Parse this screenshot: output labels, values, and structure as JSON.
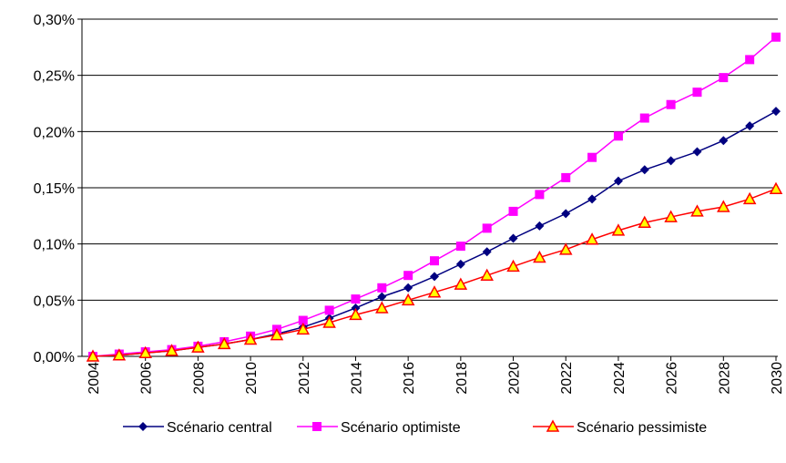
{
  "chart_data": {
    "type": "line",
    "x": [
      2004,
      2005,
      2006,
      2007,
      2008,
      2009,
      2010,
      2011,
      2012,
      2013,
      2014,
      2015,
      2016,
      2017,
      2018,
      2019,
      2020,
      2021,
      2022,
      2023,
      2024,
      2025,
      2026,
      2027,
      2028,
      2029,
      2030
    ],
    "xlim": [
      2004,
      2030
    ],
    "xticks": [
      2004,
      2006,
      2008,
      2010,
      2012,
      2014,
      2016,
      2018,
      2020,
      2022,
      2024,
      2026,
      2028,
      2030
    ],
    "ylim": [
      0,
      0.3
    ],
    "yticks": [
      {
        "value": 0,
        "label": "0,00%"
      },
      {
        "value": 0.05,
        "label": "0,05%"
      },
      {
        "value": 0.1,
        "label": "0,10%"
      },
      {
        "value": 0.15,
        "label": "0,15%"
      },
      {
        "value": 0.2,
        "label": "0,20%"
      },
      {
        "value": 0.25,
        "label": "0,25%"
      },
      {
        "value": 0.3,
        "label": "0,30%"
      }
    ],
    "grid": true,
    "legend": "bottom",
    "series": [
      {
        "name": "Scénario central",
        "color": "#000080",
        "marker": "diamond",
        "values": [
          0,
          0.001,
          0.003,
          0.005,
          0.008,
          0.011,
          0.015,
          0.02,
          0.026,
          0.034,
          0.043,
          0.053,
          0.061,
          0.071,
          0.082,
          0.093,
          0.105,
          0.116,
          0.127,
          0.14,
          0.156,
          0.166,
          0.174,
          0.182,
          0.192,
          0.205,
          0.218
        ]
      },
      {
        "name": "Scénario optimiste",
        "color": "#ff00ff",
        "marker": "square",
        "values": [
          0,
          0.002,
          0.004,
          0.006,
          0.009,
          0.013,
          0.018,
          0.024,
          0.032,
          0.041,
          0.051,
          0.061,
          0.072,
          0.085,
          0.098,
          0.114,
          0.129,
          0.144,
          0.159,
          0.177,
          0.196,
          0.212,
          0.224,
          0.235,
          0.248,
          0.264,
          0.284
        ]
      },
      {
        "name": "Scénario pessimiste",
        "color": "#ff0000",
        "marker": "triangle",
        "values": [
          0,
          0.001,
          0.003,
          0.005,
          0.008,
          0.011,
          0.015,
          0.019,
          0.024,
          0.03,
          0.037,
          0.043,
          0.05,
          0.057,
          0.064,
          0.072,
          0.08,
          0.088,
          0.095,
          0.104,
          0.112,
          0.119,
          0.124,
          0.129,
          0.133,
          0.14,
          0.149
        ]
      }
    ]
  }
}
